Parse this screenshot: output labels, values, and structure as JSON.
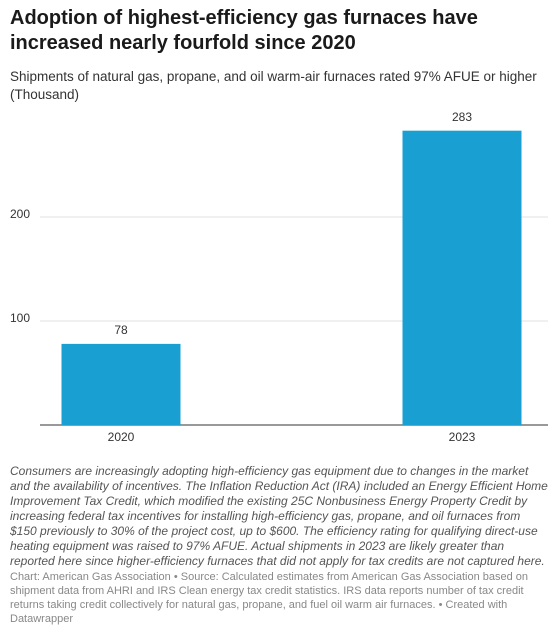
{
  "chart_data": {
    "type": "bar",
    "title": "Adoption of highest-efficiency gas furnaces have increased nearly fourfold since 2020",
    "subtitle": "Shipments of natural gas, propane, and oil warm-air furnaces rated 97% AFUE or higher (Thousand)",
    "categories": [
      "2020",
      "2023"
    ],
    "values": [
      78,
      283
    ],
    "color": "#1a9fd3",
    "ylim": [
      0,
      300
    ],
    "yticks": [
      100,
      200
    ],
    "grid": true,
    "notes": "Consumers are increasingly adopting high-efficiency gas equipment due to changes in the market and the availability of incentives. The Inflation Reduction Act (IRA) included an Energy Efficient Home Improvement Tax Credit, which modified the existing 25C Nonbusiness Energy Property Credit by increasing federal tax incentives for installing high-efficiency gas, propane, and oil furnaces from $150 previously to 30% of the project cost, up to $600. The efficiency rating for qualifying direct-use heating equipment was raised to 97% AFUE. Actual shipments in 2023 are likely greater than reported here since higher-efficiency furnaces that did not apply for tax credits are not captured here.",
    "source": "Chart: American Gas Association • Source: Calculated estimates from American Gas Association based on shipment data from AHRI and IRS Clean energy tax credit statistics. IRS data reports number of tax credit returns taking credit collectively for natural gas, propane, and fuel oil warm air furnaces. • Created with Datawrapper"
  }
}
